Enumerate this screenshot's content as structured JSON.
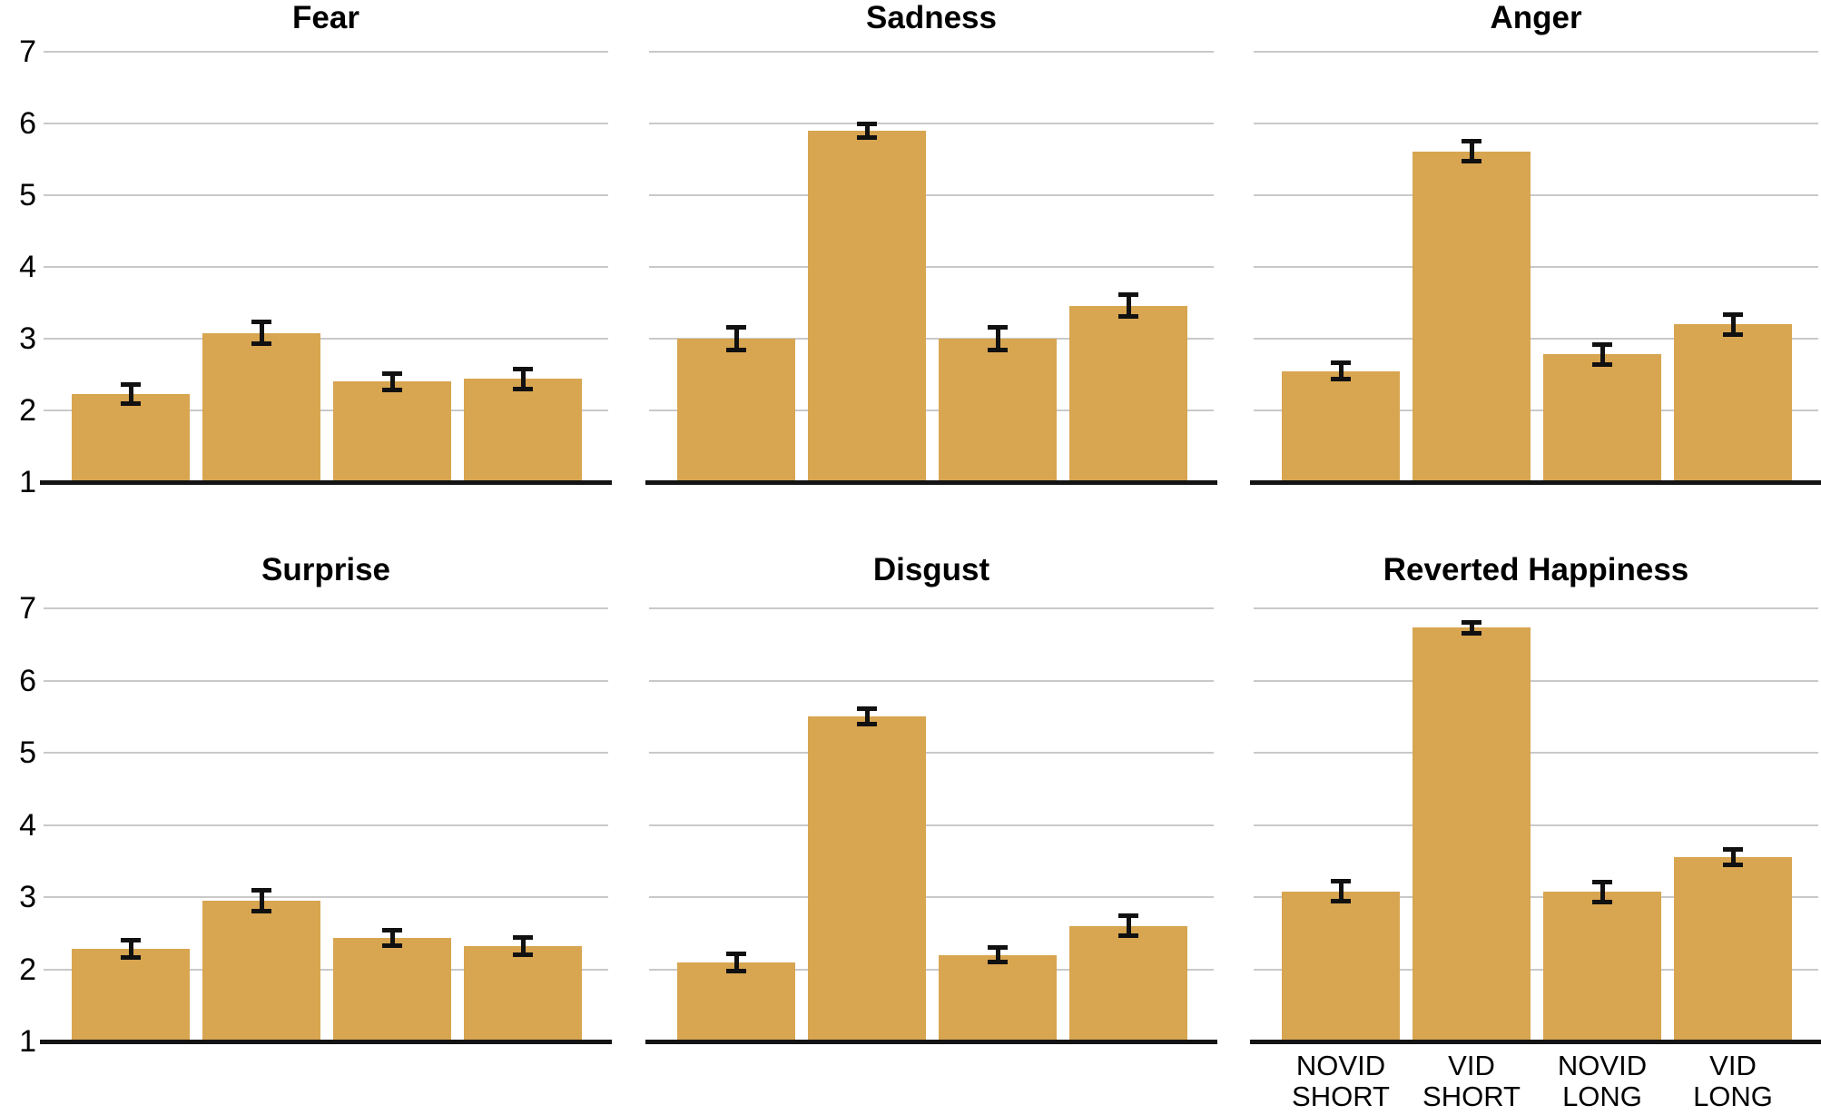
{
  "figure": {
    "kind": "bar-chart-grid",
    "background": "#ffffff",
    "bar_color": "#D8A551",
    "grid_color": "#c9c9c9",
    "axis_color": "#141414",
    "error_color": "#111111",
    "text_color": "#000000"
  },
  "axis": {
    "y_min": 1,
    "y_max": 7,
    "y_ticks": [
      "7",
      "6",
      "5",
      "4",
      "3",
      "2",
      "1"
    ]
  },
  "x_categories": [
    {
      "line1": "NOVID",
      "line2": "SHORT"
    },
    {
      "line1": "VID",
      "line2": "SHORT"
    },
    {
      "line1": "NOVID",
      "line2": "LONG"
    },
    {
      "line1": "VID",
      "line2": "LONG"
    }
  ],
  "chart_data": [
    {
      "type": "bar",
      "title": "Fear",
      "categories": [
        "NOVID SHORT",
        "VID SHORT",
        "NOVID LONG",
        "VID LONG"
      ],
      "values": [
        2.23,
        3.08,
        2.4,
        2.44
      ],
      "errors": [
        0.11,
        0.13,
        0.1,
        0.12
      ],
      "ylim": [
        1,
        7
      ],
      "grid": true,
      "show_y_ticks": true,
      "show_x_labels": false
    },
    {
      "type": "bar",
      "title": "Sadness",
      "categories": [
        "NOVID SHORT",
        "VID SHORT",
        "NOVID LONG",
        "VID LONG"
      ],
      "values": [
        3.0,
        5.9,
        3.0,
        3.46
      ],
      "errors": [
        0.14,
        0.08,
        0.14,
        0.13
      ],
      "ylim": [
        1,
        7
      ],
      "grid": true,
      "show_y_ticks": false,
      "show_x_labels": false
    },
    {
      "type": "bar",
      "title": "Anger",
      "categories": [
        "NOVID SHORT",
        "VID SHORT",
        "NOVID LONG",
        "VID LONG"
      ],
      "values": [
        2.55,
        5.61,
        2.78,
        3.2
      ],
      "errors": [
        0.09,
        0.12,
        0.12,
        0.12
      ],
      "ylim": [
        1,
        7
      ],
      "grid": true,
      "show_y_ticks": false,
      "show_x_labels": false
    },
    {
      "type": "bar",
      "title": "Surprise",
      "categories": [
        "NOVID SHORT",
        "VID SHORT",
        "NOVID LONG",
        "VID LONG"
      ],
      "values": [
        2.28,
        2.95,
        2.43,
        2.32
      ],
      "errors": [
        0.1,
        0.13,
        0.09,
        0.1
      ],
      "ylim": [
        1,
        7
      ],
      "grid": true,
      "show_y_ticks": true,
      "show_x_labels": false
    },
    {
      "type": "bar",
      "title": "Disgust",
      "categories": [
        "NOVID SHORT",
        "VID SHORT",
        "NOVID LONG",
        "VID LONG"
      ],
      "values": [
        2.1,
        5.5,
        2.2,
        2.6
      ],
      "errors": [
        0.1,
        0.09,
        0.08,
        0.12
      ],
      "ylim": [
        1,
        7
      ],
      "grid": true,
      "show_y_ticks": false,
      "show_x_labels": false
    },
    {
      "type": "bar",
      "title": "Reverted Happiness",
      "categories": [
        "NOVID SHORT",
        "VID SHORT",
        "NOVID LONG",
        "VID LONG"
      ],
      "values": [
        3.08,
        6.73,
        3.07,
        3.55
      ],
      "errors": [
        0.12,
        0.06,
        0.12,
        0.09
      ],
      "ylim": [
        1,
        7
      ],
      "grid": true,
      "show_y_ticks": false,
      "show_x_labels": true
    }
  ]
}
